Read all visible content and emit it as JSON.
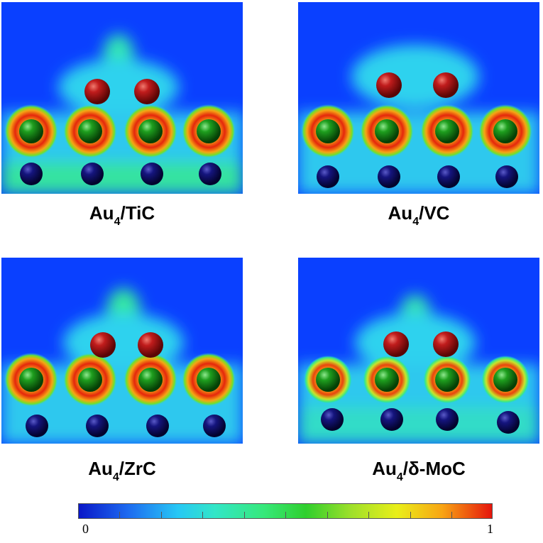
{
  "panels": [
    {
      "caption": {
        "base": "Au",
        "sub": "4",
        "rest": "/TiC"
      }
    },
    {
      "caption": {
        "base": "Au",
        "sub": "4",
        "rest": "/VC"
      }
    },
    {
      "caption": {
        "base": "Au",
        "sub": "4",
        "rest": "/ZrC"
      }
    },
    {
      "caption": {
        "base": "Au",
        "sub": "4",
        "rest": "/δ-MoC"
      }
    }
  ],
  "colorbar": {
    "min_label": "0",
    "max_label": "1"
  },
  "colors": {
    "background": "#0a40ff",
    "gold_atom": "#b01515",
    "metal_atom": "#1c9a1c",
    "carbon_atom": "#0c0c7a"
  }
}
